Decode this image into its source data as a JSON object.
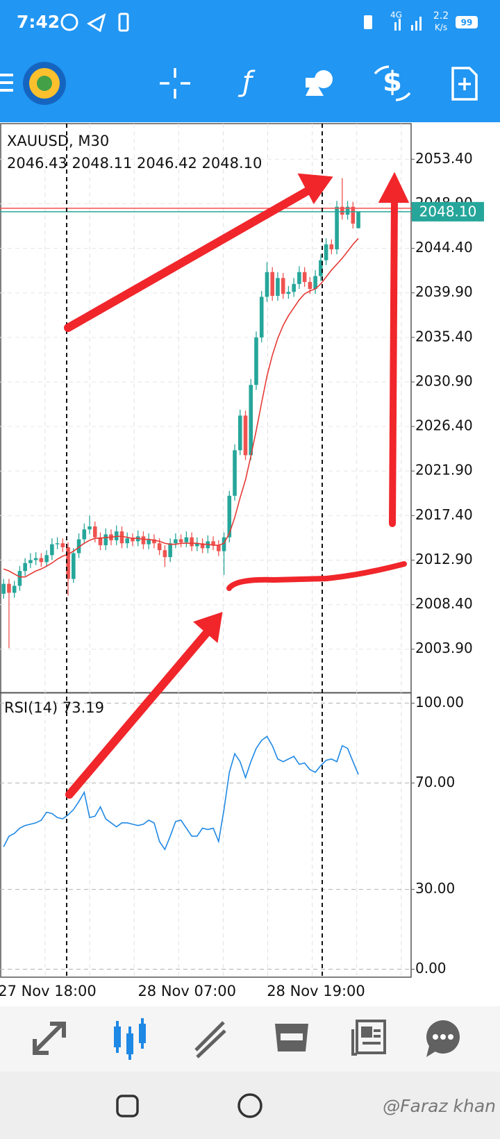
{
  "status_bar": {
    "time": "7:42",
    "network": "4G",
    "speed": "2.2",
    "speed_unit": "K/s",
    "battery": "99"
  },
  "watermark": "@Faraz khan",
  "chart_data": [
    {
      "type": "candlestick",
      "title": "XAUUSD, M30",
      "ohlc_label": "2046.43 2048.11 2046.42 2048.10",
      "categories": [
        "27 Nov 18:00",
        null,
        null,
        null,
        null,
        null,
        null,
        null,
        null,
        null,
        null,
        null,
        null,
        null,
        null,
        null,
        null,
        null,
        null,
        null,
        null,
        null,
        null,
        null,
        null,
        null,
        "28 Nov 07:00",
        null,
        null,
        null,
        null,
        null,
        null,
        null,
        null,
        null,
        null,
        null,
        null,
        null,
        null,
        null,
        null,
        null,
        null,
        null,
        null,
        null,
        null,
        null,
        "28 Nov 19:00",
        null,
        null,
        null,
        null,
        null,
        null,
        null,
        null,
        null,
        null,
        null,
        null,
        null,
        null,
        null,
        null
      ],
      "open": [
        2009.5,
        2010.5,
        2009.6,
        2010.3,
        2011.8,
        2012.6,
        2012.9,
        2013.1,
        2012.7,
        2013.4,
        2014.5,
        2014.6,
        2014.2,
        2011.0,
        2013.6,
        2015.0,
        2016.0,
        2016.3,
        2015.2,
        2014.4,
        2015.5,
        2014.9,
        2015.8,
        2014.6,
        2015.1,
        2014.8,
        2015.3,
        2014.5,
        2015.0,
        2014.6,
        2013.9,
        2013.2,
        2014.6,
        2015.0,
        2014.7,
        2015.2,
        2014.3,
        2014.6,
        2014.1,
        2014.8,
        2014.4,
        2013.8,
        2015.2,
        2019.4,
        2024.0,
        2027.5,
        2023.5,
        2030.6,
        2035.4,
        2039.5,
        2042.0,
        2039.6,
        2041.4,
        2039.8,
        2040.0,
        2040.8,
        2042.0,
        2041.0,
        2040.3,
        2041.6,
        2043.2,
        2044.8,
        2044.3,
        2048.6,
        2047.8,
        2048.6,
        2046.43
      ],
      "high": [
        2011.0,
        2011.0,
        2010.8,
        2012.3,
        2013.1,
        2013.6,
        2013.7,
        2013.6,
        2013.9,
        2015.1,
        2015.2,
        2015.1,
        2014.7,
        2014.1,
        2015.6,
        2016.6,
        2017.4,
        2016.8,
        2015.7,
        2016.1,
        2016.0,
        2016.4,
        2016.3,
        2015.7,
        2015.6,
        2015.9,
        2015.8,
        2015.6,
        2015.5,
        2015.1,
        2014.4,
        2015.1,
        2015.6,
        2015.5,
        2015.8,
        2015.7,
        2015.2,
        2015.1,
        2015.4,
        2015.3,
        2014.9,
        2015.7,
        2019.9,
        2024.6,
        2028.1,
        2028.0,
        2031.2,
        2036.0,
        2040.1,
        2043.0,
        2042.5,
        2042.0,
        2041.9,
        2040.6,
        2041.4,
        2042.6,
        2042.5,
        2041.5,
        2042.2,
        2043.8,
        2045.4,
        2045.3,
        2049.2,
        2051.5,
        2049.2,
        2049.1,
        2048.11
      ],
      "low": [
        2009.0,
        2004.0,
        2009.1,
        2009.8,
        2011.3,
        2012.1,
        2012.4,
        2012.2,
        2012.2,
        2012.9,
        2014.0,
        2013.7,
        2009.3,
        2010.6,
        2013.1,
        2014.5,
        2015.5,
        2014.7,
        2013.9,
        2013.9,
        2014.4,
        2014.4,
        2014.1,
        2014.1,
        2014.3,
        2014.3,
        2014.0,
        2014.0,
        2014.1,
        2013.4,
        2012.2,
        2012.7,
        2014.1,
        2014.2,
        2014.2,
        2013.8,
        2013.8,
        2013.6,
        2013.6,
        2013.9,
        2013.3,
        2011.4,
        2014.7,
        2018.9,
        2023.5,
        2023.0,
        2023.0,
        2030.1,
        2034.9,
        2039.0,
        2039.1,
        2039.1,
        2039.3,
        2039.3,
        2039.5,
        2040.3,
        2040.5,
        2039.8,
        2039.8,
        2041.1,
        2042.7,
        2043.8,
        2043.8,
        2047.3,
        2047.3,
        2046.4,
        2046.42
      ],
      "close": [
        2010.5,
        2009.6,
        2010.3,
        2011.8,
        2012.6,
        2012.9,
        2013.1,
        2012.7,
        2013.4,
        2014.5,
        2014.6,
        2014.2,
        2011.0,
        2013.6,
        2015.0,
        2016.0,
        2016.3,
        2015.2,
        2014.4,
        2015.5,
        2014.9,
        2015.8,
        2014.6,
        2015.1,
        2014.8,
        2015.3,
        2014.5,
        2015.0,
        2014.6,
        2013.9,
        2013.2,
        2014.6,
        2015.0,
        2014.7,
        2015.2,
        2014.3,
        2014.6,
        2014.1,
        2014.8,
        2014.4,
        2013.8,
        2015.2,
        2019.4,
        2024.0,
        2027.5,
        2023.5,
        2030.6,
        2035.4,
        2039.5,
        2042.0,
        2039.6,
        2041.4,
        2039.8,
        2040.0,
        2040.8,
        2042.0,
        2041.0,
        2040.3,
        2041.6,
        2043.2,
        2044.8,
        2044.3,
        2048.6,
        2047.8,
        2048.6,
        2046.9,
        2048.1
      ],
      "up_color": "#26a69a",
      "down_color": "#ef5350",
      "ma": {
        "color": "#e53935",
        "values": [
          2012.0,
          2011.8,
          2011.5,
          2011.2,
          2011.2,
          2011.5,
          2011.8,
          2012.0,
          2012.3,
          2012.6,
          2013.0,
          2013.3,
          2013.5,
          2013.8,
          2014.2,
          2014.6,
          2014.9,
          2015.1,
          2015.1,
          2015.2,
          2015.2,
          2015.3,
          2015.3,
          2015.2,
          2015.1,
          2015.1,
          2015.0,
          2015.0,
          2014.9,
          2014.8,
          2014.6,
          2014.5,
          2014.5,
          2014.6,
          2014.6,
          2014.6,
          2014.6,
          2014.5,
          2014.5,
          2014.4,
          2014.4,
          2014.6,
          2015.6,
          2017.2,
          2019.2,
          2021.0,
          2023.4,
          2026.0,
          2028.8,
          2031.5,
          2033.6,
          2035.3,
          2036.6,
          2037.6,
          2038.4,
          2039.2,
          2039.8,
          2040.1,
          2040.3,
          2040.8,
          2041.5,
          2042.2,
          2042.8,
          2043.4,
          2044.1,
          2044.8,
          2045.4
        ]
      },
      "current_price": {
        "value": 2048.1,
        "label": "2048.10"
      },
      "price_color": "#26a69a",
      "ask_line": 2048.45,
      "ask_color": "#ef5350",
      "ylim": [
        1999.6,
        2057.0
      ],
      "yticks": [
        {
          "value": 2053.4,
          "label": "2053.40"
        },
        {
          "value": 2048.9,
          "label": "2048.90"
        },
        {
          "value": 2044.4,
          "label": "2044.40"
        },
        {
          "value": 2039.9,
          "label": "2039.90"
        },
        {
          "value": 2035.4,
          "label": "2035.40"
        },
        {
          "value": 2030.9,
          "label": "2030.90"
        },
        {
          "value": 2026.4,
          "label": "2026.40"
        },
        {
          "value": 2021.9,
          "label": "2021.90"
        },
        {
          "value": 2017.4,
          "label": "2017.40"
        },
        {
          "value": 2012.9,
          "label": "2012.90"
        },
        {
          "value": 2008.4,
          "label": "2008.40"
        },
        {
          "value": 2003.9,
          "label": "2003.90"
        }
      ],
      "grid": true
    },
    {
      "type": "line",
      "title": "RSI(14) 73.19",
      "color": "#1e88e5",
      "values": [
        46,
        50,
        51,
        53,
        54,
        54.5,
        55,
        56,
        59,
        58.5,
        57,
        56.5,
        58,
        60,
        63,
        66.5,
        57,
        57.5,
        61,
        56.5,
        55,
        53.5,
        55,
        55,
        54.5,
        54,
        54.5,
        56,
        55,
        48,
        45,
        50,
        55.5,
        56,
        53,
        50,
        50,
        53,
        52.5,
        53,
        48,
        60,
        74,
        81,
        78,
        72,
        78,
        83,
        86,
        87.5,
        84,
        79,
        78,
        79,
        80,
        77,
        77.5,
        75,
        74,
        76.5,
        78.5,
        79,
        78,
        84,
        83,
        78,
        73.19
      ],
      "ylim": [
        -3,
        103.5
      ],
      "yticks": [
        {
          "value": 100,
          "label": "100.00"
        },
        {
          "value": 70,
          "label": "70.00"
        },
        {
          "value": 30,
          "label": "30.00"
        },
        {
          "value": 0,
          "label": "0.00"
        }
      ],
      "grid": true
    }
  ]
}
